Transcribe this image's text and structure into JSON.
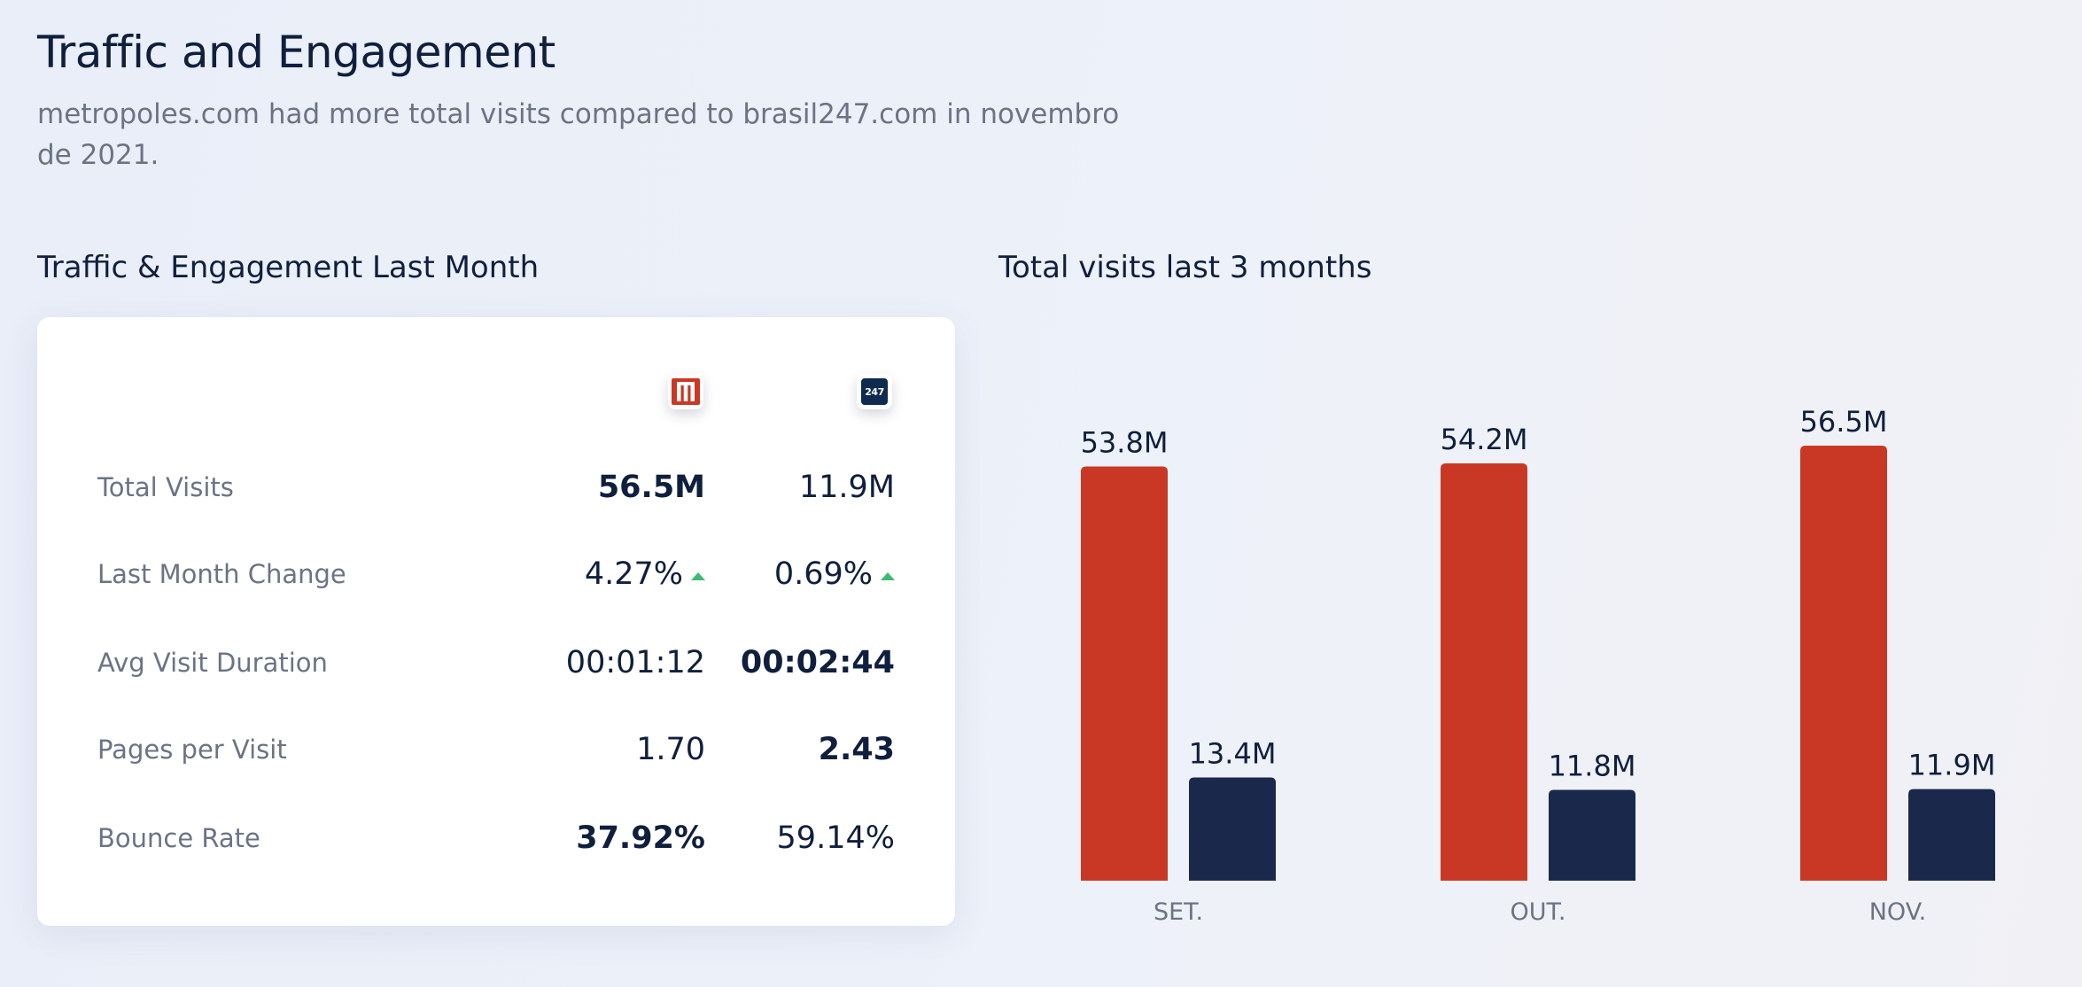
{
  "header": {
    "title": "Traffic and Engagement",
    "subtitle": "metropoles.com had more total visits compared to brasil247.com in novembro de 2021."
  },
  "left_section": {
    "title": "Traffic & Engagement Last Month",
    "sites": [
      {
        "name": "metropoles.com",
        "logo_icon": "metropoles-logo-icon",
        "color": "#c93824"
      },
      {
        "name": "brasil247.com",
        "logo_icon": "brasil247-logo-icon",
        "logo_text": "247",
        "color": "#0f2a4f"
      }
    ],
    "rows": [
      {
        "label": "Total Visits",
        "a": "56.5M",
        "b": "11.9M"
      },
      {
        "label": "Last Month Change",
        "a": "4.27%",
        "b": "0.69%"
      },
      {
        "label": "Avg Visit Duration",
        "a": "00:01:12",
        "b": "00:02:44"
      },
      {
        "label": "Pages per Visit",
        "a": "1.70",
        "b": "2.43"
      },
      {
        "label": "Bounce Rate",
        "a": "37.92%",
        "b": "59.14%"
      }
    ]
  },
  "right_section": {
    "title": "Total visits last 3 months"
  },
  "chart_data": {
    "type": "bar",
    "title": "Total visits last 3 months",
    "categories": [
      "SET.",
      "OUT.",
      "NOV."
    ],
    "series": [
      {
        "name": "metropoles.com",
        "color": "#c93824",
        "values": [
          53.8,
          54.2,
          56.5
        ],
        "labels": [
          "53.8M",
          "54.2M",
          "56.5M"
        ]
      },
      {
        "name": "brasil247.com",
        "color": "#19284b",
        "values": [
          13.4,
          11.8,
          11.9
        ],
        "labels": [
          "13.4M",
          "11.8M",
          "11.9M"
        ]
      }
    ],
    "xlabel": "",
    "ylabel": "",
    "ylim": [
      0,
      60
    ],
    "grid": false,
    "legend": "none"
  }
}
